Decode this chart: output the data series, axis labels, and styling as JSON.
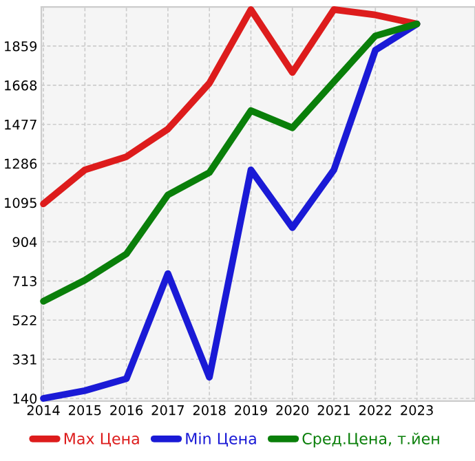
{
  "chart_data": {
    "type": "line",
    "x": [
      2014,
      2015,
      2016,
      2017,
      2018,
      2019,
      2020,
      2021,
      2022,
      2023
    ],
    "series": [
      {
        "name": "Max Цена",
        "color": "#dd1c1c",
        "values": [
          1089,
          1255,
          1319,
          1454,
          1678,
          2037,
          1730,
          2037,
          2011,
          1967
        ]
      },
      {
        "name": "Min Цена",
        "color": "#1a1ad6",
        "values": [
          140,
          178,
          236,
          749,
          243,
          1255,
          973,
          1255,
          1839,
          1967
        ]
      },
      {
        "name": "Сред.Цена, т.йен",
        "color": "#0a7f0a",
        "values": [
          614,
          717,
          845,
          1133,
          1242,
          1544,
          1460,
          1685,
          1909,
          1967
        ]
      }
    ],
    "xlim": [
      2013.95,
      2024.4
    ],
    "xticks": [
      2014,
      2015,
      2016,
      2017,
      2018,
      2019,
      2020,
      2021,
      2022,
      2023
    ],
    "ylim": [
      127,
      2050
    ],
    "yticks": [
      140,
      331,
      522,
      713,
      904,
      1095,
      1286,
      1477,
      1668,
      1859
    ],
    "grid": true,
    "legend": "bottom",
    "marker": "none",
    "line_style": "solid"
  }
}
